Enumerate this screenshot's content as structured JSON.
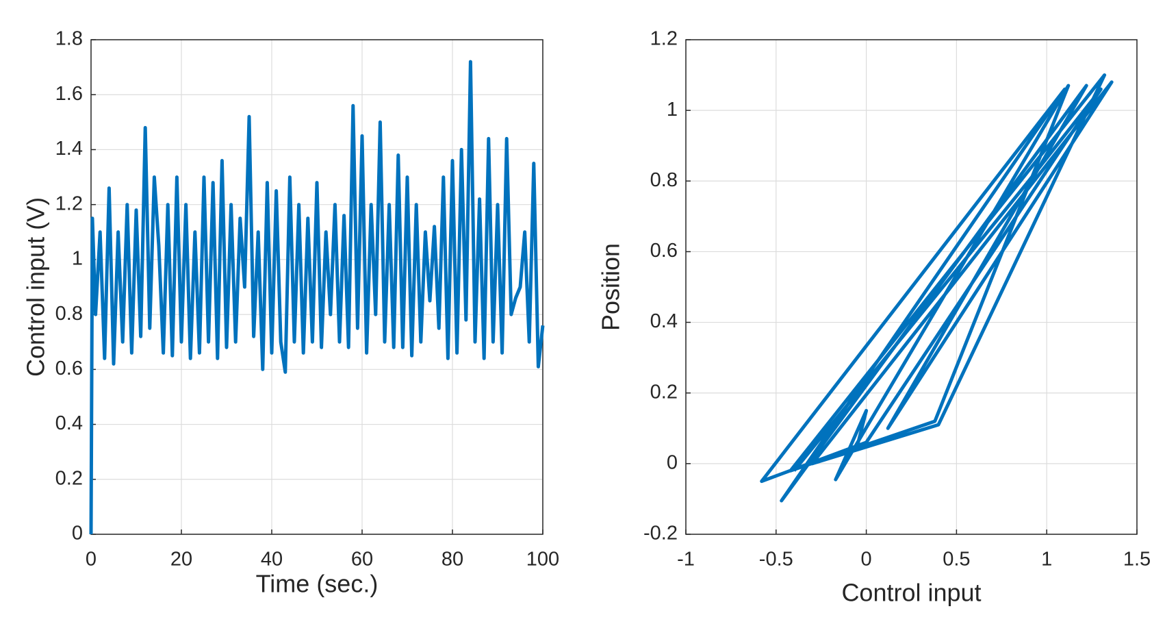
{
  "chart_data": [
    {
      "type": "line",
      "xlabel": "Time (sec.)",
      "ylabel": "Control input (V)",
      "color": "#0072bd",
      "grid": true,
      "xlim": [
        0,
        100
      ],
      "ylim": [
        0,
        1.8
      ],
      "xticks": [
        0,
        20,
        40,
        60,
        80,
        100
      ],
      "yticks": [
        0,
        0.2,
        0.4,
        0.6,
        0.8,
        1,
        1.2,
        1.4,
        1.6,
        1.8
      ],
      "x": [
        0,
        0.3,
        1,
        2,
        3,
        4,
        5,
        6,
        7,
        8,
        9,
        10,
        11,
        12,
        13,
        14,
        15,
        16,
        17,
        18,
        19,
        20,
        21,
        22,
        23,
        24,
        25,
        26,
        27,
        28,
        29,
        30,
        31,
        32,
        33,
        34,
        35,
        36,
        37,
        38,
        39,
        40,
        41,
        42,
        43,
        44,
        45,
        46,
        47,
        48,
        49,
        50,
        51,
        52,
        53,
        54,
        55,
        56,
        57,
        58,
        59,
        60,
        61,
        62,
        63,
        64,
        65,
        66,
        67,
        68,
        69,
        70,
        71,
        72,
        73,
        74,
        75,
        76,
        77,
        78,
        79,
        80,
        81,
        82,
        83,
        84,
        85,
        86,
        87,
        88,
        89,
        90,
        91,
        92,
        93,
        94,
        95,
        96,
        97,
        98,
        99,
        100
      ],
      "values": [
        0,
        1.15,
        0.8,
        1.1,
        0.64,
        1.26,
        0.62,
        1.1,
        0.7,
        1.2,
        0.66,
        1.18,
        0.72,
        1.48,
        0.75,
        1.3,
        1.05,
        0.66,
        1.2,
        0.65,
        1.3,
        0.7,
        1.2,
        0.64,
        1.1,
        0.66,
        1.3,
        0.7,
        1.28,
        0.64,
        1.36,
        0.68,
        1.2,
        0.7,
        1.15,
        0.9,
        1.52,
        0.72,
        1.1,
        0.6,
        1.28,
        0.66,
        1.25,
        0.7,
        0.59,
        1.3,
        0.7,
        1.2,
        0.66,
        1.15,
        0.7,
        1.28,
        0.68,
        1.1,
        0.8,
        1.2,
        0.7,
        1.16,
        0.68,
        1.56,
        0.75,
        1.45,
        0.66,
        1.2,
        0.8,
        1.5,
        0.7,
        1.2,
        0.68,
        1.38,
        0.68,
        1.3,
        0.65,
        1.2,
        0.7,
        1.1,
        0.85,
        1.12,
        0.75,
        1.3,
        0.64,
        1.36,
        0.66,
        1.4,
        0.78,
        1.72,
        0.7,
        1.22,
        0.64,
        1.44,
        0.7,
        1.2,
        0.66,
        1.44,
        0.8,
        0.86,
        0.9,
        1.1,
        0.7,
        1.35,
        0.61,
        0.76
      ]
    },
    {
      "type": "line",
      "xlabel": "Control input",
      "ylabel": "Position",
      "color": "#0072bd",
      "grid": true,
      "xlim": [
        -1,
        1.5
      ],
      "ylim": [
        -0.2,
        1.2
      ],
      "xticks": [
        -1,
        -0.5,
        0,
        0.5,
        1,
        1.5
      ],
      "yticks": [
        -0.2,
        0,
        0.2,
        0.4,
        0.6,
        0.8,
        1,
        1.2
      ],
      "x": [
        -0.05,
        0,
        -0.17,
        1.12,
        0.38,
        -0.42,
        1.32,
        0.4,
        -0.3,
        1.36,
        0.12,
        1.22,
        -0.47,
        1.1,
        -0.58,
        0,
        1.3,
        0.9,
        -0.4
      ],
      "values": [
        0.05,
        0.15,
        -0.045,
        1.07,
        0.12,
        -0.02,
        1.1,
        0.11,
        0,
        1.08,
        0.1,
        1.07,
        -0.105,
        1.06,
        -0.05,
        0.06,
        1.06,
        0.8,
        -0.02
      ]
    }
  ]
}
